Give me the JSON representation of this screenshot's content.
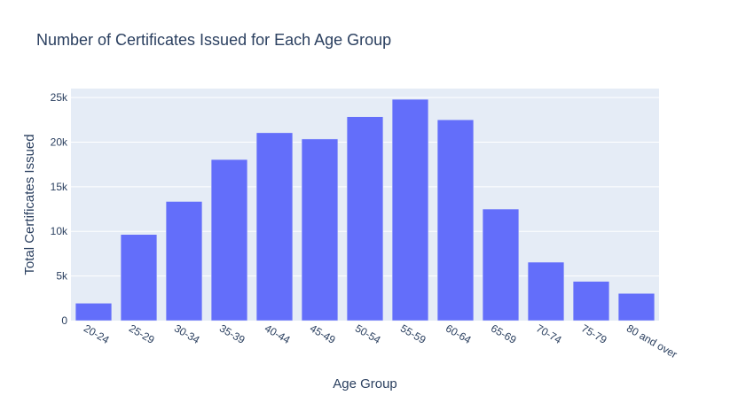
{
  "colors": {
    "plot_bg": "#e5ecf6",
    "grid": "#ffffff",
    "bar": "#636efa",
    "text": "#2a3f5f"
  },
  "chart_data": {
    "type": "bar",
    "title": "Number of Certificates Issued for Each Age Group",
    "xlabel": "Age Group",
    "ylabel": "Total Certificates Issued",
    "categories": [
      "20-24",
      "25-29",
      "30-34",
      "35-39",
      "40-44",
      "45-49",
      "50-54",
      "55-59",
      "60-64",
      "65-69",
      "70-74",
      "75-79",
      "80 and over"
    ],
    "values": [
      1950,
      9650,
      13350,
      18050,
      21050,
      20350,
      22850,
      24800,
      22500,
      12500,
      6550,
      4400,
      3050
    ],
    "ylim": [
      0,
      26000
    ],
    "yticks": [
      0,
      5000,
      10000,
      15000,
      20000,
      25000
    ],
    "ytick_labels": [
      "0",
      "5k",
      "10k",
      "15k",
      "20k",
      "25k"
    ],
    "grid": true
  }
}
